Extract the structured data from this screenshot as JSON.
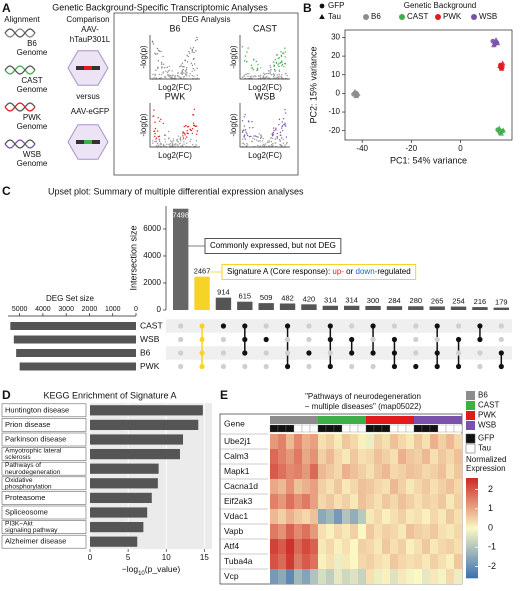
{
  "panel_labels": [
    "A",
    "B",
    "C",
    "D",
    "E"
  ],
  "diagram": {
    "title": "Genetic Background-Specific Transcriptomic Analyses",
    "alignment_header": "Alignment",
    "genomes": [
      "B6",
      "CAST",
      "PWK",
      "WSB"
    ],
    "genome_word": "Genome",
    "colors": [
      "#7f7f7f",
      "#3fae49",
      "#e31a1c",
      "#7b52ab"
    ],
    "comparison_header": "Comparison",
    "treatment_lines": [
      "AAV-",
      "hTauP301L"
    ],
    "versus": "versus",
    "control": "AAV-eGFP",
    "deg_header": "DEG Analysis",
    "volcano_titles": [
      "B6",
      "CAST",
      "PWK",
      "WSB"
    ],
    "volcano_y_label": "-log(p)",
    "volcano_x_label": "Log2(FC)"
  },
  "chart_data": [
    {
      "type": "scatter",
      "shape_legend": [
        {
          "name": "GFP",
          "shape": "circle"
        },
        {
          "name": "Tau",
          "shape": "triangle"
        }
      ],
      "legend_title": "Genetic Background",
      "x_label": "PC1: 54% variance",
      "y_label": "PC2: 15% variance",
      "xlim": [
        -47,
        21
      ],
      "xticks": [
        -40,
        -20,
        0
      ],
      "ylim": [
        -25,
        34
      ],
      "yticks": [
        -20,
        -10,
        0,
        10,
        20,
        30
      ],
      "series": [
        {
          "name": "B6",
          "color": "#8c8c8c",
          "x": [
            -43.5,
            -42.8,
            -42.1,
            -43.0,
            -41.8,
            -42.5
          ],
          "y": [
            -0.5,
            0.3,
            -1.2,
            0.8,
            -0.2,
            -1.5
          ],
          "group": [
            "GFP",
            "GFP",
            "GFP",
            "Tau",
            "Tau",
            "Tau"
          ]
        },
        {
          "name": "CAST",
          "color": "#3fae49",
          "x": [
            15.2,
            16.0,
            17.1,
            15.8,
            16.6,
            17.4
          ],
          "y": [
            -19.5,
            -21.0,
            -20.2,
            -18.8,
            -21.6,
            -19.9
          ],
          "group": [
            "GFP",
            "GFP",
            "GFP",
            "Tau",
            "Tau",
            "Tau"
          ]
        },
        {
          "name": "PWK",
          "color": "#e31a1c",
          "x": [
            16.3,
            17.0,
            16.6,
            17.2,
            16.1,
            16.8
          ],
          "y": [
            15.2,
            14.0,
            13.5,
            16.0,
            14.6,
            13.2
          ],
          "group": [
            "GFP",
            "GFP",
            "GFP",
            "Tau",
            "Tau",
            "Tau"
          ]
        },
        {
          "name": "WSB",
          "color": "#7b52ab",
          "x": [
            13.2,
            14.0,
            14.8,
            13.6,
            14.5,
            15.1
          ],
          "y": [
            28.0,
            26.5,
            27.2,
            25.8,
            28.6,
            26.9
          ],
          "group": [
            "GFP",
            "GFP",
            "GFP",
            "Tau",
            "Tau",
            "Tau"
          ]
        }
      ]
    },
    {
      "type": "upset",
      "title": "Upset plot: Summary of multiple differential expression analyses",
      "y_label": "Intersection size",
      "values": [
        7498,
        2467,
        914,
        615,
        509,
        482,
        420,
        314,
        314,
        300,
        284,
        280,
        265,
        254,
        216,
        179
      ],
      "colors": [
        "#666666",
        "#f5d327",
        "#555555",
        "#555555",
        "#555555",
        "#555555",
        "#555555",
        "#555555",
        "#555555",
        "#555555",
        "#555555",
        "#555555",
        "#555555",
        "#555555",
        "#555555",
        "#555555"
      ],
      "ylim": [
        0,
        7700
      ],
      "yticks": [
        0,
        2000,
        4000,
        6000
      ],
      "annotations": [
        [
          {
            "text": "Commonly expressed, but not DEG",
            "color": "#000000"
          }
        ],
        [
          {
            "text": "Signature A (Core response): ",
            "color": "#000000"
          },
          {
            "text": "up-",
            "color": "#e31a1c"
          },
          {
            "text": " or ",
            "color": "#000000"
          },
          {
            "text": "down-",
            "color": "#1f5fd6"
          },
          {
            "text": "regulated",
            "color": "#000000"
          }
        ]
      ],
      "annotation_box_colors": [
        "#555555",
        "#f5d327"
      ],
      "sets": [
        "CAST",
        "WSB",
        "B6",
        "PWK"
      ],
      "set_size_label": "DEG Set size",
      "set_sizes": [
        5400,
        5250,
        5150,
        5000
      ],
      "set_size_lim": [
        0,
        5500
      ],
      "set_size_ticks": [
        5000,
        4000,
        3000,
        2000,
        1000,
        0
      ],
      "memberships": [
        [],
        [
          "CAST",
          "WSB",
          "B6",
          "PWK"
        ],
        [
          "CAST"
        ],
        [
          "CAST",
          "WSB",
          "B6"
        ],
        [
          "WSB"
        ],
        [
          "CAST",
          "PWK"
        ],
        [
          "B6"
        ],
        [
          "CAST",
          "WSB",
          "PWK"
        ],
        [
          "WSB",
          "B6"
        ],
        [
          "CAST",
          "B6"
        ],
        [
          "WSB",
          "B6",
          "PWK"
        ],
        [
          "PWK"
        ],
        [
          "CAST",
          "B6",
          "PWK"
        ],
        [
          "WSB",
          "PWK"
        ],
        [
          "CAST",
          "WSB"
        ],
        [
          "B6",
          "PWK"
        ]
      ]
    },
    {
      "type": "barh",
      "title": "KEGG Enrichment of Signature A",
      "categories": [
        [
          "Huntington disease"
        ],
        [
          "Prion disease"
        ],
        [
          "Parkinson disease"
        ],
        [
          "Amyotrophic lateral",
          "sclerosis"
        ],
        [
          "Pathways of",
          "neurodegeneration"
        ],
        [
          "Oxidative",
          "phosphorylation"
        ],
        [
          "Proteasome"
        ],
        [
          "Spliceosome"
        ],
        [
          "PI3K−Akt",
          "signaling pathway"
        ],
        [
          "Alzheimer disease"
        ]
      ],
      "values": [
        14.8,
        14.2,
        12.2,
        11.8,
        9.0,
        8.9,
        8.1,
        7.5,
        7.0,
        6.2
      ],
      "color": "#555555",
      "xlim": [
        0,
        16
      ],
      "xticks": [
        0,
        5,
        10,
        15
      ],
      "x_label": [
        "−log",
        "10",
        "(p_value)"
      ]
    },
    {
      "type": "heatmap",
      "title": [
        "\"Pathways of neurodegeneration",
        "− multiple diseases\" (map05022)"
      ],
      "row_header": "Gene",
      "rows": [
        "Ube2j1",
        "Calm3",
        "Mapk1",
        "Cacna1d",
        "Eif2ak3",
        "Vdac1",
        "Vapb",
        "Atf4",
        "Tuba4a",
        "Vcp"
      ],
      "column_strains": [
        "B6",
        "B6",
        "B6",
        "B6",
        "B6",
        "B6",
        "CAST",
        "CAST",
        "CAST",
        "CAST",
        "CAST",
        "CAST",
        "PWK",
        "PWK",
        "PWK",
        "PWK",
        "PWK",
        "PWK",
        "WSB",
        "WSB",
        "WSB",
        "WSB",
        "WSB",
        "WSB"
      ],
      "column_conditions": [
        "GFP",
        "GFP",
        "GFP",
        "Tau",
        "Tau",
        "Tau",
        "GFP",
        "GFP",
        "GFP",
        "Tau",
        "Tau",
        "Tau",
        "GFP",
        "GFP",
        "GFP",
        "Tau",
        "Tau",
        "Tau",
        "GFP",
        "GFP",
        "GFP",
        "Tau",
        "Tau",
        "Tau"
      ],
      "strain_legend": [
        {
          "name": "B6",
          "color": "#8c8c8c"
        },
        {
          "name": "CAST",
          "color": "#3fae49"
        },
        {
          "name": "PWK",
          "color": "#e31a1c"
        },
        {
          "name": "WSB",
          "color": "#7b52ab"
        }
      ],
      "condition_legend": [
        {
          "name": "GFP",
          "color": "#111111"
        },
        {
          "name": "Tau",
          "color": "#ffffff"
        }
      ],
      "colorbar_label": [
        "Normalized",
        "Expression"
      ],
      "zlim": [
        -2.6,
        2.6
      ],
      "zticks": [
        -2,
        -1,
        0,
        1,
        2
      ],
      "colormap": [
        "#3a6fb0",
        "#fbf8c4",
        "#cc2a27"
      ],
      "values": [
        [
          1.2,
          1.5,
          0.8,
          1.4,
          0.9,
          1.1,
          0.3,
          0.5,
          0.2,
          0.6,
          0.4,
          0.1,
          -0.2,
          0.5,
          0.3,
          0.7,
          0.4,
          0.2,
          0.6,
          0.3,
          0.9,
          0.5,
          0.8,
          0.4
        ],
        [
          1.8,
          1.5,
          1.2,
          1.6,
          1.0,
          1.3,
          0.5,
          0.8,
          0.4,
          0.2,
          0.6,
          0.3,
          0.4,
          0.7,
          0.5,
          0.3,
          0.9,
          0.6,
          0.5,
          0.8,
          0.3,
          0.6,
          0.4,
          0.7
        ],
        [
          2.0,
          1.7,
          1.4,
          1.5,
          1.2,
          1.8,
          0.8,
          0.6,
          0.4,
          0.9,
          0.7,
          0.5,
          0.3,
          0.6,
          0.8,
          0.4,
          0.5,
          0.7,
          0.6,
          0.4,
          0.5,
          0.7,
          0.3,
          0.6
        ],
        [
          1.0,
          0.8,
          1.3,
          0.7,
          0.9,
          1.1,
          0.5,
          0.3,
          0.6,
          0.2,
          0.4,
          0.7,
          0.6,
          0.4,
          0.3,
          0.8,
          0.5,
          0.2,
          0.4,
          0.6,
          0.3,
          0.5,
          0.7,
          0.4
        ],
        [
          1.5,
          1.2,
          1.7,
          1.3,
          1.6,
          1.1,
          0.4,
          0.6,
          0.3,
          0.5,
          0.2,
          0.7,
          0.5,
          0.3,
          0.6,
          0.4,
          0.7,
          0.5,
          0.3,
          0.5,
          0.4,
          0.6,
          0.2,
          0.5
        ],
        [
          0.8,
          0.5,
          0.9,
          0.6,
          0.4,
          0.7,
          -1.5,
          -1.2,
          -1.8,
          -1.0,
          -1.4,
          -0.9,
          0.2,
          0.4,
          0.1,
          0.3,
          0.5,
          0.2,
          0.3,
          0.1,
          0.4,
          0.2,
          0.6,
          0.3
        ],
        [
          1.6,
          1.3,
          1.9,
          1.4,
          1.7,
          1.2,
          0.3,
          0.1,
          0.4,
          0.2,
          0.5,
          0.0,
          0.6,
          0.3,
          0.5,
          0.4,
          0.2,
          0.7,
          0.5,
          0.4,
          0.6,
          0.3,
          0.2,
          0.4
        ],
        [
          2.3,
          2.0,
          2.5,
          1.8,
          2.2,
          1.9,
          0.2,
          0.4,
          0.1,
          0.3,
          0.0,
          0.5,
          0.4,
          0.2,
          0.6,
          0.3,
          0.5,
          0.1,
          0.3,
          0.6,
          0.2,
          0.4,
          0.5,
          0.3
        ],
        [
          2.1,
          1.8,
          2.4,
          1.6,
          2.0,
          1.7,
          0.1,
          0.3,
          -0.2,
          0.2,
          0.0,
          0.4,
          0.5,
          0.3,
          0.2,
          0.6,
          0.4,
          0.3,
          0.4,
          0.2,
          0.5,
          0.3,
          0.1,
          0.6
        ],
        [
          -1.8,
          -1.5,
          -2.1,
          -1.2,
          -1.6,
          -1.0,
          -0.5,
          -0.8,
          -0.3,
          -0.6,
          -0.4,
          -0.7,
          0.3,
          -0.2,
          0.1,
          -0.4,
          0.2,
          -0.1,
          0.0,
          -0.3,
          0.2,
          -0.1,
          0.4,
          -0.2
        ]
      ]
    }
  ]
}
